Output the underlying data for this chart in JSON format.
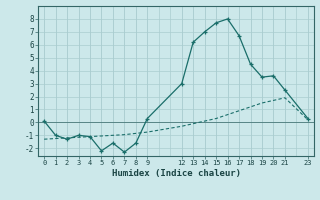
{
  "xlabel": "Humidex (Indice chaleur)",
  "bg_color": "#cce8ea",
  "grid_color": "#aacdd0",
  "line_color": "#1a6e6a",
  "xlim": [
    -0.5,
    23.5
  ],
  "ylim": [
    -2.6,
    9.0
  ],
  "xticks": [
    0,
    1,
    2,
    3,
    4,
    5,
    6,
    7,
    8,
    9,
    12,
    13,
    14,
    15,
    16,
    17,
    18,
    19,
    20,
    21,
    23
  ],
  "yticks": [
    -2,
    -1,
    0,
    1,
    2,
    3,
    4,
    5,
    6,
    7,
    8
  ],
  "line1_x": [
    0,
    1,
    2,
    3,
    4,
    5,
    6,
    7,
    8,
    9,
    12,
    13,
    14,
    15,
    16,
    17,
    18,
    19,
    20,
    21,
    23
  ],
  "line1_y": [
    0.1,
    -1.0,
    -1.3,
    -1.0,
    -1.1,
    -2.2,
    -1.6,
    -2.3,
    -1.6,
    0.3,
    3.0,
    6.2,
    7.0,
    7.7,
    8.0,
    6.7,
    4.5,
    3.5,
    3.6,
    2.5,
    0.3
  ],
  "line2_x": [
    0,
    1,
    2,
    3,
    4,
    5,
    6,
    7,
    8,
    9,
    12,
    13,
    14,
    15,
    16,
    17,
    18,
    19,
    20,
    21,
    23
  ],
  "line2_y": [
    -1.3,
    -1.25,
    -1.2,
    -1.15,
    -1.1,
    -1.05,
    -1.0,
    -0.95,
    -0.85,
    -0.75,
    -0.3,
    -0.1,
    0.1,
    0.3,
    0.6,
    0.9,
    1.2,
    1.5,
    1.7,
    1.9,
    0.2
  ]
}
